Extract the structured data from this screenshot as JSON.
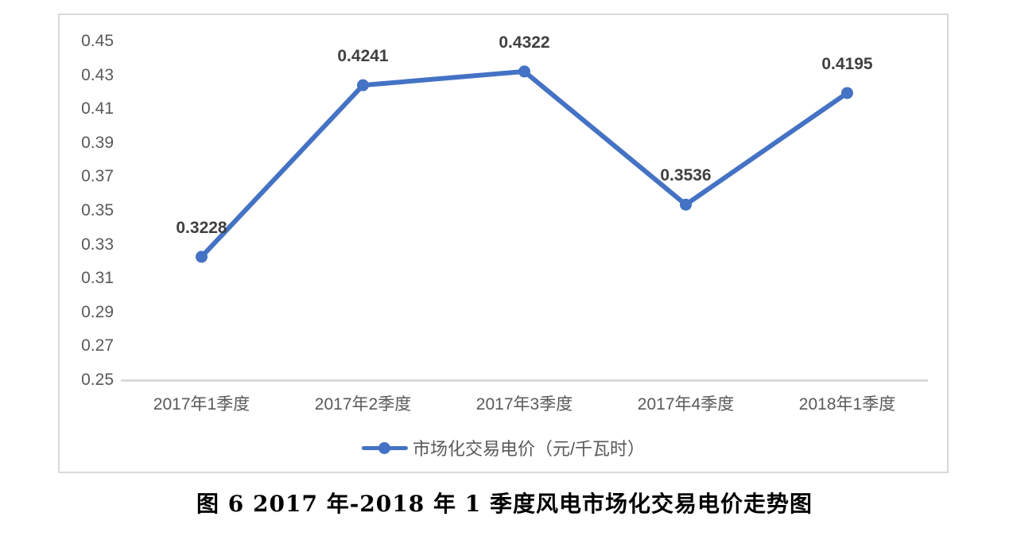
{
  "figure": {
    "caption": "图 6 2017 年-2018 年 1 季度风电市场化交易电价走势图"
  },
  "chart_data": {
    "type": "line",
    "title": "",
    "xlabel": "",
    "ylabel": "",
    "categories": [
      "2017年1季度",
      "2017年2季度",
      "2017年3季度",
      "2017年4季度",
      "2018年1季度"
    ],
    "series": [
      {
        "name": "市场化交易电价（元/千瓦时）",
        "values": [
          0.3228,
          0.4241,
          0.4322,
          0.3536,
          0.4195
        ],
        "data_labels": [
          "0.3228",
          "0.4241",
          "0.4322",
          "0.3536",
          "0.4195"
        ],
        "color": "#4472C4",
        "marker": "circle"
      }
    ],
    "ylim": [
      0.25,
      0.45
    ],
    "ytick_step": 0.02,
    "yticks": [
      "0.45",
      "0.43",
      "0.41",
      "0.39",
      "0.37",
      "0.35",
      "0.33",
      "0.31",
      "0.29",
      "0.27",
      "0.25"
    ],
    "grid": false,
    "legend_position": "bottom",
    "colors": {
      "series": "#4472C4",
      "axis_line": "#D9D9D9",
      "tick_labels": "#595959",
      "data_labels": "#404040",
      "background": "#FFFFFF"
    }
  }
}
